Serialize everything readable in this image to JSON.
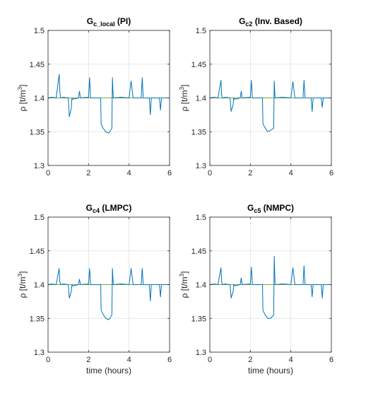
{
  "chart_data": [
    {
      "type": "line",
      "title": "G",
      "title_subscript": "c_local",
      "title_suffix": " (PI)",
      "xlabel": "",
      "ylabel": "ρ [t/m",
      "ylabel_sup": "3",
      "ylabel_end": "]",
      "xlim": [
        0,
        6
      ],
      "ylim": [
        1.3,
        1.5
      ],
      "xticks": [
        "0",
        "2",
        "4",
        "6"
      ],
      "yticks": [
        "1.3",
        "1.35",
        "1.4",
        "1.45",
        "1.5"
      ],
      "grid": true,
      "series": [
        {
          "color": "#77ac30",
          "x": [
            0,
            6
          ],
          "y": [
            1.4,
            1.4
          ]
        },
        {
          "color": "#0072bd",
          "x": [
            0,
            0.2,
            0.4,
            0.55,
            0.58,
            0.62,
            0.75,
            1.0,
            1.05,
            1.15,
            1.18,
            1.22,
            1.5,
            1.55,
            1.6,
            2.0,
            2.05,
            2.1,
            2.6,
            2.62,
            2.7,
            2.85,
            3.0,
            3.15,
            3.18,
            3.22,
            3.6,
            4.0,
            4.1,
            4.2,
            4.6,
            4.65,
            4.7,
            5.0,
            5.05,
            5.1,
            5.5,
            5.55,
            5.6,
            6.0
          ],
          "y": [
            1.4,
            1.401,
            1.4,
            1.435,
            1.41,
            1.4,
            1.401,
            1.4,
            1.372,
            1.385,
            1.4,
            1.398,
            1.4,
            1.41,
            1.4,
            1.401,
            1.43,
            1.4,
            1.4,
            1.362,
            1.356,
            1.35,
            1.348,
            1.355,
            1.43,
            1.4,
            1.401,
            1.4,
            1.425,
            1.4,
            1.4,
            1.43,
            1.4,
            1.4,
            1.375,
            1.4,
            1.4,
            1.382,
            1.4,
            1.4
          ]
        }
      ]
    },
    {
      "type": "line",
      "title": "G",
      "title_subscript": "c2",
      "title_suffix": " (Inv. Based)",
      "xlabel": "",
      "ylabel": "ρ [t/m",
      "ylabel_sup": "3",
      "ylabel_end": "]",
      "xlim": [
        0,
        6
      ],
      "ylim": [
        1.3,
        1.5
      ],
      "xticks": [
        "0",
        "2",
        "4",
        "6"
      ],
      "yticks": [
        "1.3",
        "1.35",
        "1.4",
        "1.45",
        "1.5"
      ],
      "grid": true,
      "series": [
        {
          "color": "#77ac30",
          "x": [
            0,
            6
          ],
          "y": [
            1.4,
            1.4
          ]
        },
        {
          "color": "#0072bd",
          "x": [
            0,
            0.2,
            0.4,
            0.55,
            0.58,
            0.62,
            0.75,
            1.0,
            1.05,
            1.15,
            1.18,
            1.22,
            1.5,
            1.55,
            1.6,
            2.0,
            2.05,
            2.1,
            2.6,
            2.62,
            2.7,
            2.85,
            3.0,
            3.15,
            3.18,
            3.22,
            3.6,
            4.0,
            4.1,
            4.2,
            4.6,
            4.65,
            4.7,
            5.0,
            5.05,
            5.1,
            5.5,
            5.55,
            5.6,
            6.0
          ],
          "y": [
            1.4,
            1.401,
            1.4,
            1.426,
            1.405,
            1.4,
            1.401,
            1.4,
            1.38,
            1.39,
            1.4,
            1.398,
            1.4,
            1.41,
            1.4,
            1.401,
            1.426,
            1.4,
            1.4,
            1.362,
            1.357,
            1.35,
            1.352,
            1.355,
            1.425,
            1.4,
            1.401,
            1.4,
            1.424,
            1.4,
            1.4,
            1.426,
            1.4,
            1.4,
            1.38,
            1.4,
            1.4,
            1.386,
            1.4,
            1.4
          ]
        }
      ]
    },
    {
      "type": "line",
      "title": "G",
      "title_subscript": "c4",
      "title_suffix": " (LMPC)",
      "xlabel": "time (hours)",
      "ylabel": "ρ [t/m",
      "ylabel_sup": "3",
      "ylabel_end": "]",
      "xlim": [
        0,
        6
      ],
      "ylim": [
        1.3,
        1.5
      ],
      "xticks": [
        "0",
        "2",
        "4",
        "6"
      ],
      "yticks": [
        "1.3",
        "1.35",
        "1.4",
        "1.45",
        "1.5"
      ],
      "grid": true,
      "series": [
        {
          "color": "#77ac30",
          "x": [
            0,
            6
          ],
          "y": [
            1.4,
            1.4
          ]
        },
        {
          "color": "#0072bd",
          "x": [
            0,
            0.2,
            0.4,
            0.55,
            0.58,
            0.62,
            0.75,
            1.0,
            1.05,
            1.15,
            1.18,
            1.22,
            1.5,
            1.55,
            1.6,
            2.0,
            2.05,
            2.1,
            2.6,
            2.62,
            2.7,
            2.85,
            3.0,
            3.15,
            3.18,
            3.22,
            3.6,
            4.0,
            4.1,
            4.2,
            4.6,
            4.65,
            4.7,
            5.0,
            5.05,
            5.1,
            5.5,
            5.55,
            5.6,
            6.0
          ],
          "y": [
            1.4,
            1.401,
            1.4,
            1.424,
            1.405,
            1.4,
            1.401,
            1.4,
            1.38,
            1.39,
            1.4,
            1.398,
            1.4,
            1.408,
            1.4,
            1.401,
            1.424,
            1.4,
            1.4,
            1.362,
            1.357,
            1.35,
            1.348,
            1.355,
            1.424,
            1.4,
            1.401,
            1.4,
            1.424,
            1.4,
            1.4,
            1.424,
            1.4,
            1.4,
            1.376,
            1.4,
            1.4,
            1.382,
            1.4,
            1.4
          ]
        }
      ]
    },
    {
      "type": "line",
      "title": "G",
      "title_subscript": "c5",
      "title_suffix": " (NMPC)",
      "xlabel": "time (hours)",
      "ylabel": "ρ [t/m",
      "ylabel_sup": "3",
      "ylabel_end": "]",
      "xlim": [
        0,
        6
      ],
      "ylim": [
        1.3,
        1.5
      ],
      "xticks": [
        "0",
        "2",
        "4",
        "6"
      ],
      "yticks": [
        "1.3",
        "1.35",
        "1.4",
        "1.45",
        "1.5"
      ],
      "grid": true,
      "series": [
        {
          "color": "#77ac30",
          "x": [
            0,
            6
          ],
          "y": [
            1.4,
            1.4
          ]
        },
        {
          "color": "#0072bd",
          "x": [
            0,
            0.2,
            0.4,
            0.55,
            0.58,
            0.62,
            0.75,
            1.0,
            1.05,
            1.15,
            1.18,
            1.22,
            1.5,
            1.55,
            1.6,
            2.0,
            2.05,
            2.1,
            2.6,
            2.62,
            2.7,
            2.85,
            3.0,
            3.15,
            3.18,
            3.22,
            3.6,
            4.0,
            4.1,
            4.2,
            4.6,
            4.65,
            4.7,
            5.0,
            5.05,
            5.1,
            5.5,
            5.55,
            5.6,
            6.0
          ],
          "y": [
            1.4,
            1.401,
            1.4,
            1.425,
            1.405,
            1.4,
            1.401,
            1.4,
            1.38,
            1.39,
            1.4,
            1.398,
            1.4,
            1.41,
            1.4,
            1.401,
            1.426,
            1.4,
            1.4,
            1.362,
            1.357,
            1.35,
            1.35,
            1.355,
            1.442,
            1.4,
            1.401,
            1.4,
            1.425,
            1.4,
            1.4,
            1.428,
            1.4,
            1.4,
            1.382,
            1.4,
            1.4,
            1.38,
            1.4,
            1.4
          ]
        }
      ]
    }
  ]
}
